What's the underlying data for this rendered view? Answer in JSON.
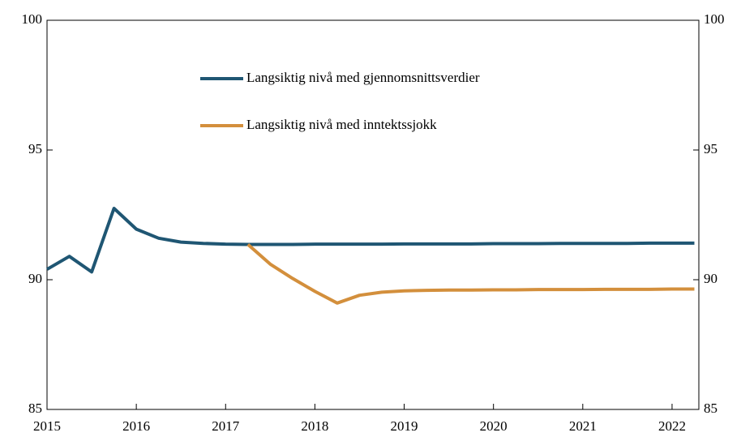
{
  "chart_data": {
    "type": "line",
    "x": [
      2015,
      2015.25,
      2015.5,
      2015.75,
      2016,
      2016.25,
      2016.5,
      2016.75,
      2017,
      2017.25,
      2017.5,
      2017.75,
      2018,
      2018.25,
      2018.5,
      2018.75,
      2019,
      2019.25,
      2019.5,
      2019.75,
      2020,
      2020.25,
      2020.5,
      2020.75,
      2021,
      2021.25,
      2021.5,
      2021.75,
      2022,
      2022.25
    ],
    "series": [
      {
        "name": "Langsiktig nivå med gjennomsnittsverdier",
        "color": "#1f5673",
        "values": [
          90.4,
          90.9,
          90.3,
          92.75,
          91.95,
          91.6,
          91.45,
          91.4,
          91.37,
          91.36,
          91.36,
          91.36,
          91.37,
          91.37,
          91.37,
          91.37,
          91.38,
          91.38,
          91.38,
          91.38,
          91.39,
          91.39,
          91.39,
          91.4,
          91.4,
          91.4,
          91.4,
          91.41,
          91.41,
          91.41
        ]
      },
      {
        "name": "Langsiktig nivå med inntektssjokk",
        "color": "#d38f3c",
        "values": [
          null,
          null,
          null,
          null,
          null,
          null,
          null,
          null,
          null,
          91.36,
          90.6,
          90.05,
          89.55,
          89.1,
          89.4,
          89.52,
          89.57,
          89.59,
          89.6,
          89.6,
          89.61,
          89.61,
          89.62,
          89.62,
          89.62,
          89.63,
          89.63,
          89.63,
          89.64,
          89.64
        ]
      }
    ],
    "xlim": [
      2015,
      2022.3
    ],
    "xticks": [
      2015,
      2016,
      2017,
      2018,
      2019,
      2020,
      2021,
      2022
    ],
    "ylim": [
      85,
      100
    ],
    "yticks": [
      85,
      90,
      95,
      100
    ],
    "y2lim": [
      85,
      100
    ],
    "y2ticks": [
      85,
      90,
      95,
      100
    ],
    "legend": "top-center"
  }
}
